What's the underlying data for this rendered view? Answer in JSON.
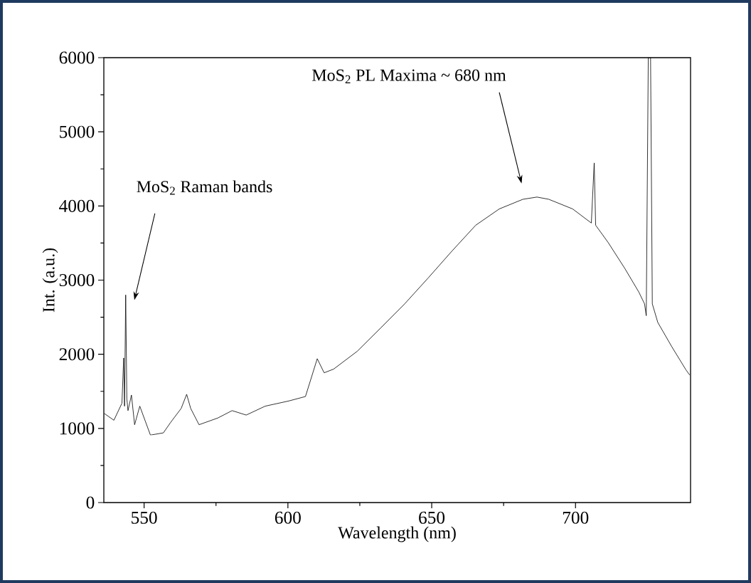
{
  "chart_data": {
    "type": "line",
    "xlabel": "Wavelength (nm)",
    "ylabel": "Int. (a.u.)",
    "xlim": [
      536,
      740
    ],
    "ylim": [
      0,
      6000
    ],
    "xticks": [
      550,
      600,
      650,
      700
    ],
    "yticks": [
      0,
      1000,
      2000,
      3000,
      4000,
      5000,
      6000
    ],
    "color": "#000000",
    "x": [
      536.2,
      539.5,
      542.3,
      542.9,
      543.2,
      543.6,
      544.0,
      544.4,
      545.6,
      546.7,
      548.5,
      552.2,
      556.7,
      559.2,
      562.9,
      564.8,
      566.2,
      569.1,
      575.6,
      580.6,
      585.5,
      592.1,
      600.3,
      606.1,
      610.2,
      612.6,
      615.9,
      624.1,
      632.4,
      640.6,
      648.8,
      657.0,
      665.3,
      673.5,
      681.7,
      686.6,
      690.7,
      699.0,
      705.5,
      706.5,
      707.0,
      711.3,
      717.1,
      722.0,
      724.0,
      724.6,
      725.3,
      726.1,
      726.7,
      728.6,
      733.5,
      738.4,
      739.7
    ],
    "values": [
      1200,
      1110,
      1340,
      1950,
      1300,
      2800,
      1400,
      1240,
      1450,
      1050,
      1300,
      910,
      940,
      1080,
      1270,
      1460,
      1270,
      1050,
      1140,
      1240,
      1180,
      1300,
      1370,
      1430,
      1940,
      1750,
      1800,
      2040,
      2360,
      2680,
      3030,
      3390,
      3740,
      3960,
      4090,
      4120,
      4090,
      3960,
      3770,
      4580,
      3740,
      3510,
      3160,
      2840,
      2680,
      2520,
      6000,
      6000,
      2680,
      2430,
      2100,
      1790,
      1720
    ],
    "annotations": [
      "MoS$_{2}$ Raman bands",
      "MoS$_{2}$ PL Maxima ~ 680 nm"
    ]
  }
}
